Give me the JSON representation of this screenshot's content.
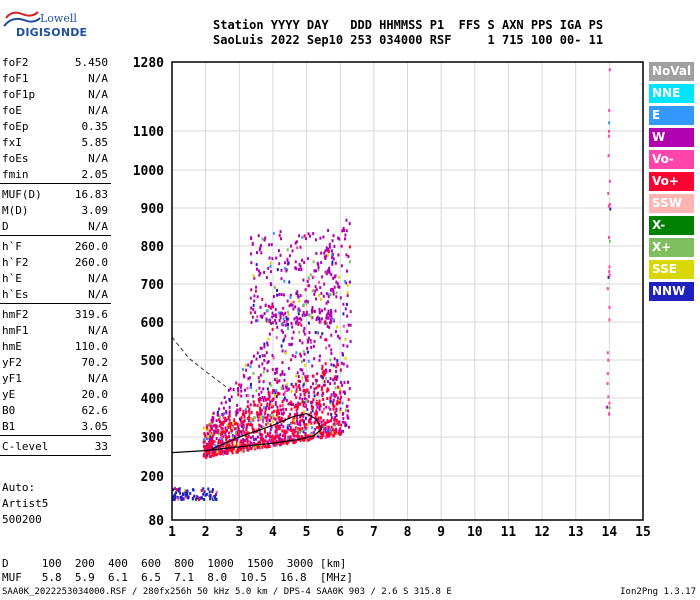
{
  "logo": {
    "line1": "Lowell",
    "line2": "DIGISONDE"
  },
  "header": {
    "line1": "Station YYYY DAY   DDD HHMMSS P1  FFS S AXN PPS IGA PS",
    "line2": "SaoLuis 2022 Sep10 253 034000 RSF     1 715 100 00- 11"
  },
  "params": [
    {
      "key": "foF2",
      "value": "5.450"
    },
    {
      "key": "foF1",
      "value": "N/A"
    },
    {
      "key": "foF1p",
      "value": "N/A"
    },
    {
      "key": "foE",
      "value": "N/A"
    },
    {
      "key": "foEp",
      "value": "0.35"
    },
    {
      "key": "fxI",
      "value": "5.85"
    },
    {
      "key": "foEs",
      "value": "N/A"
    },
    {
      "key": "fmin",
      "value": "2.05"
    },
    {
      "key": "MUF(D)",
      "value": "16.83"
    },
    {
      "key": "M(D)",
      "value": "3.09"
    },
    {
      "key": "D",
      "value": "N/A"
    },
    {
      "key": "h`F",
      "value": "260.0"
    },
    {
      "key": "h`F2",
      "value": "260.0"
    },
    {
      "key": "h`E",
      "value": "N/A"
    },
    {
      "key": "h`Es",
      "value": "N/A"
    },
    {
      "key": "hmF2",
      "value": "319.6"
    },
    {
      "key": "hmF1",
      "value": "N/A"
    },
    {
      "key": "hmE",
      "value": "110.0"
    },
    {
      "key": "yF2",
      "value": "70.2"
    },
    {
      "key": "yF1",
      "value": "N/A"
    },
    {
      "key": "yE",
      "value": "20.0"
    },
    {
      "key": "B0",
      "value": "62.6"
    },
    {
      "key": "B1",
      "value": "3.05"
    },
    {
      "key": "C-level",
      "value": "33"
    }
  ],
  "auto": {
    "line1": "Auto:",
    "line2": "Artist5",
    "line3": "500200"
  },
  "legend": [
    {
      "label": "NoVal",
      "color": "#a0a0a0"
    },
    {
      "label": "NNE",
      "color": "#00e5ff"
    },
    {
      "label": "E",
      "color": "#3399ff"
    },
    {
      "label": "W",
      "color": "#b000b0"
    },
    {
      "label": "Vo-",
      "color": "#ff44aa"
    },
    {
      "label": "Vo+",
      "color": "#ff0033"
    },
    {
      "label": "SSW",
      "color": "#ffb3b3"
    },
    {
      "label": "X-",
      "color": "#008000"
    },
    {
      "label": "X+",
      "color": "#7fbf5f"
    },
    {
      "label": "SSE",
      "color": "#d8d800"
    },
    {
      "label": "NNW",
      "color": "#2020c0"
    }
  ],
  "footer": {
    "line1": "D     100  200  400  600  800  1000  1500  3000 [km]",
    "line2": "MUF   5.8  5.9  6.1  6.5  7.1  8.0  10.5  16.8  [MHz]",
    "file": "SAA0K_2022253034000.RSF / 280fx256h 50 kHz 5.0 km / DPS-4 SAA0K 903 / 2.6 S 315.8 E",
    "version": "Ion2Png 1.3.17"
  },
  "chart_data": {
    "type": "scatter",
    "title": "",
    "xlabel": "",
    "ylabel": "",
    "xlim": [
      1,
      15
    ],
    "ylim": [
      80,
      1280
    ],
    "xticks": [
      1,
      2,
      3,
      4,
      5,
      6,
      7,
      8,
      9,
      10,
      11,
      12,
      13,
      14,
      15
    ],
    "yticks": [
      80,
      200,
      300,
      400,
      500,
      600,
      700,
      800,
      900,
      1000,
      1100,
      1280
    ],
    "y_scale": "nonlinear (ionogram height axis)",
    "grid": true,
    "echo_clusters": [
      {
        "name": "main trace",
        "color": "#b000b0",
        "f_range": [
          2.0,
          6.3
        ],
        "h_range": [
          260,
          820
        ]
      },
      {
        "name": "lower trace O",
        "color": "#ff0033",
        "f_range": [
          1.9,
          6.0
        ],
        "h_range": [
          250,
          560
        ]
      },
      {
        "name": "E layer echoes",
        "color": "#2020c0",
        "f_range": [
          1.0,
          2.3
        ],
        "h_range": [
          140,
          170
        ]
      },
      {
        "name": "high spread",
        "color": "#b000b0",
        "f_range": [
          3.3,
          5.8
        ],
        "h_range": [
          600,
          850
        ]
      },
      {
        "name": "14 MHz interference",
        "color": "#ff44aa",
        "f_range": [
          13.9,
          14.0
        ],
        "h_range": [
          360,
          1280
        ]
      }
    ],
    "profile_solid": [
      [
        1.0,
        260
      ],
      [
        2.0,
        265
      ],
      [
        3.0,
        275
      ],
      [
        4.0,
        284
      ],
      [
        4.8,
        294
      ],
      [
        5.2,
        303
      ],
      [
        5.45,
        319.6
      ],
      [
        5.3,
        345
      ],
      [
        5.0,
        360
      ],
      [
        4.6,
        352
      ],
      [
        4.0,
        330
      ],
      [
        3.0,
        300
      ],
      [
        2.2,
        270
      ]
    ],
    "profile_dashed": [
      [
        1.0,
        560
      ],
      [
        1.5,
        505
      ],
      [
        2.0,
        470
      ],
      [
        2.6,
        430
      ]
    ],
    "foF2": 5.45,
    "hmF2": 319.6
  }
}
